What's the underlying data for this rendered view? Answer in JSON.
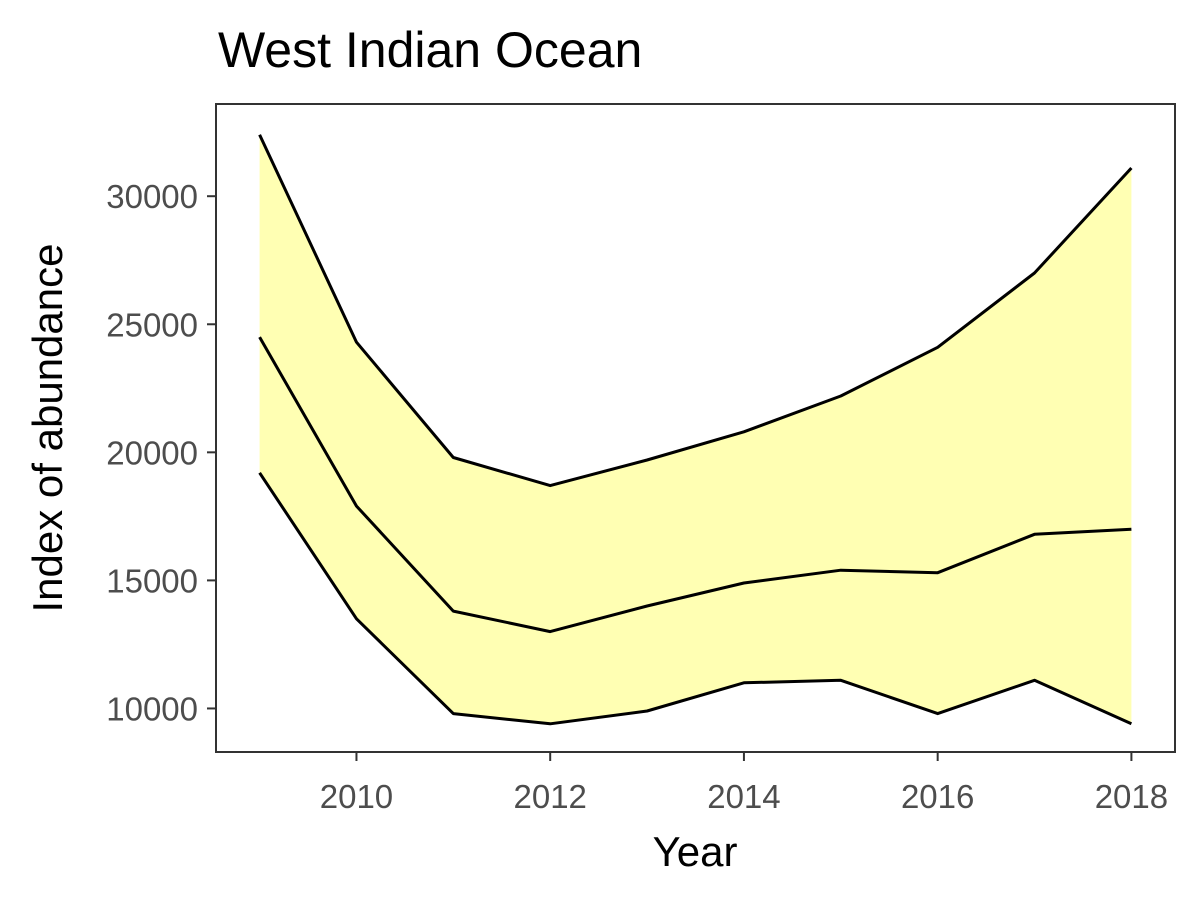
{
  "chart_data": {
    "type": "line",
    "title": "West Indian Ocean",
    "xlabel": "Year",
    "ylabel": "Index of abundance",
    "xlim": [
      2008.55,
      2018.45
    ],
    "ylim": [
      8300,
      33600
    ],
    "x_ticks": [
      2010,
      2012,
      2014,
      2016,
      2018
    ],
    "y_ticks": [
      10000,
      15000,
      20000,
      25000,
      30000
    ],
    "x": [
      2009,
      2010,
      2011,
      2012,
      2013,
      2014,
      2015,
      2016,
      2017,
      2018
    ],
    "grid": false,
    "legend": "none",
    "band_fill": "#ffffb3",
    "line_color": "#000000",
    "series": [
      {
        "role": "upper",
        "values": [
          32400,
          24300,
          19800,
          18700,
          19700,
          20800,
          22200,
          24100,
          27000,
          31100
        ]
      },
      {
        "role": "estimate",
        "values": [
          24500,
          17900,
          13800,
          13000,
          14000,
          14900,
          15400,
          15300,
          16800,
          17000
        ]
      },
      {
        "role": "lower",
        "values": [
          19200,
          13500,
          9800,
          9400,
          9900,
          11000,
          11100,
          9800,
          11100,
          9400
        ]
      }
    ]
  }
}
